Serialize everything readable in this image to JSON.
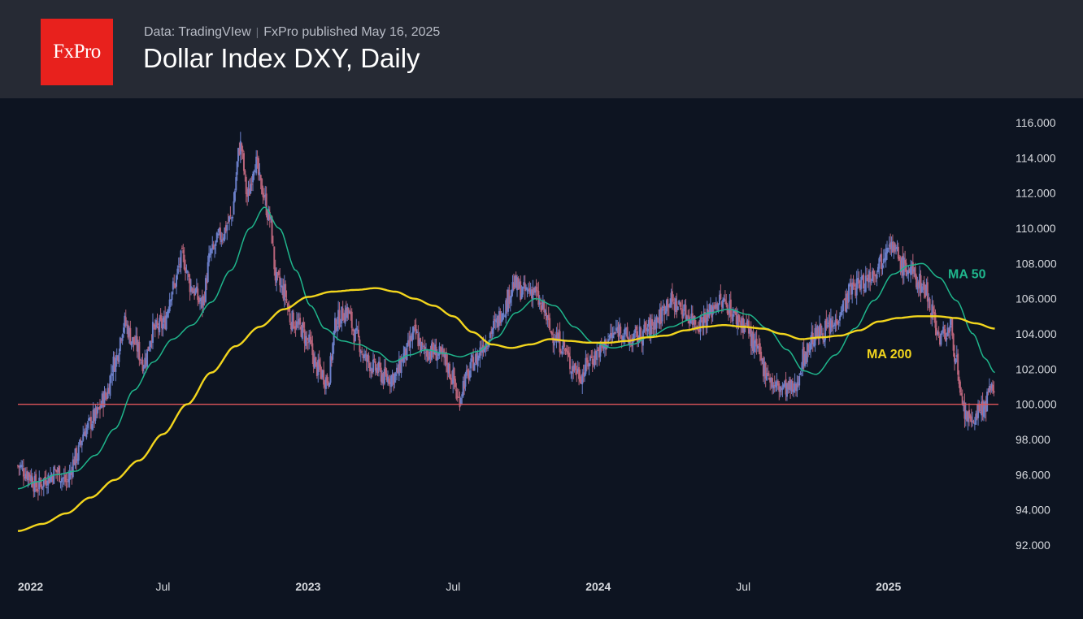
{
  "header": {
    "logo_text": "FxPro",
    "source": "Data: TradingVIew",
    "published": "FxPro published May 16, 2025",
    "separator": "|"
  },
  "chart_data": {
    "type": "candlestick",
    "title": "Dollar Index DXY, Daily",
    "ylim": [
      90.8,
      117.2
    ],
    "y_ticks": [
      92,
      94,
      96,
      98,
      100,
      102,
      104,
      106,
      108,
      110,
      112,
      114,
      116
    ],
    "y_tick_labels": [
      "92.000",
      "94.000",
      "96.000",
      "98.000",
      "100.000",
      "102.000",
      "104.000",
      "106.000",
      "108.000",
      "110.000",
      "112.000",
      "114.000",
      "116.000"
    ],
    "x_ticks": [
      {
        "label": "2022",
        "month_index": 0,
        "bold": true
      },
      {
        "label": "Jul",
        "month_index": 6,
        "bold": false
      },
      {
        "label": "2023",
        "month_index": 12,
        "bold": true
      },
      {
        "label": "Jul",
        "month_index": 18,
        "bold": false
      },
      {
        "label": "2024",
        "month_index": 24,
        "bold": true
      },
      {
        "label": "Jul",
        "month_index": 30,
        "bold": false
      },
      {
        "label": "2025",
        "month_index": 36,
        "bold": true
      }
    ],
    "x_range_months": [
      0,
      40.55
    ],
    "horizontal_level": {
      "value": 100,
      "color": "#e0565b"
    },
    "price_path": [
      [
        0.0,
        96.5
      ],
      [
        0.4,
        96.1
      ],
      [
        0.8,
        95.3
      ],
      [
        1.2,
        95.8
      ],
      [
        1.6,
        96.2
      ],
      [
        2.0,
        95.6
      ],
      [
        2.4,
        97.0
      ],
      [
        2.8,
        98.6
      ],
      [
        3.2,
        99.3
      ],
      [
        3.6,
        100.4
      ],
      [
        4.0,
        102.4
      ],
      [
        4.4,
        104.6
      ],
      [
        4.8,
        103.5
      ],
      [
        5.2,
        102.4
      ],
      [
        5.6,
        104.2
      ],
      [
        6.0,
        104.5
      ],
      [
        6.4,
        106.6
      ],
      [
        6.8,
        108.3
      ],
      [
        7.2,
        106.6
      ],
      [
        7.6,
        105.7
      ],
      [
        8.0,
        108.6
      ],
      [
        8.4,
        109.6
      ],
      [
        8.8,
        110.5
      ],
      [
        9.2,
        114.7
      ],
      [
        9.5,
        111.8
      ],
      [
        9.8,
        113.8
      ],
      [
        10.1,
        112.2
      ],
      [
        10.4,
        110.6
      ],
      [
        10.7,
        107.0
      ],
      [
        11.0,
        106.4
      ],
      [
        11.3,
        104.8
      ],
      [
        11.7,
        104.3
      ],
      [
        12.0,
        103.5
      ],
      [
        12.4,
        102.0
      ],
      [
        12.8,
        101.4
      ],
      [
        13.2,
        104.8
      ],
      [
        13.6,
        105.3
      ],
      [
        14.0,
        103.8
      ],
      [
        14.4,
        102.5
      ],
      [
        14.8,
        102.0
      ],
      [
        15.2,
        101.5
      ],
      [
        15.6,
        101.6
      ],
      [
        16.0,
        102.8
      ],
      [
        16.4,
        104.0
      ],
      [
        16.8,
        103.0
      ],
      [
        17.2,
        103.0
      ],
      [
        17.6,
        102.6
      ],
      [
        18.0,
        101.5
      ],
      [
        18.2,
        100.2
      ],
      [
        18.5,
        101.4
      ],
      [
        18.9,
        102.5
      ],
      [
        19.3,
        103.5
      ],
      [
        19.7,
        104.4
      ],
      [
        20.1,
        105.5
      ],
      [
        20.5,
        106.8
      ],
      [
        20.9,
        106.4
      ],
      [
        21.3,
        106.5
      ],
      [
        21.7,
        105.4
      ],
      [
        22.1,
        104.0
      ],
      [
        22.5,
        103.4
      ],
      [
        22.9,
        102.2
      ],
      [
        23.3,
        101.7
      ],
      [
        23.7,
        102.6
      ],
      [
        24.1,
        103.1
      ],
      [
        24.5,
        103.8
      ],
      [
        24.9,
        104.3
      ],
      [
        25.3,
        103.6
      ],
      [
        25.7,
        103.9
      ],
      [
        26.1,
        104.3
      ],
      [
        26.5,
        104.9
      ],
      [
        26.9,
        105.9
      ],
      [
        27.3,
        105.6
      ],
      [
        27.7,
        105.1
      ],
      [
        28.1,
        104.6
      ],
      [
        28.5,
        105.0
      ],
      [
        28.9,
        105.8
      ],
      [
        29.3,
        105.7
      ],
      [
        29.7,
        104.9
      ],
      [
        30.1,
        104.5
      ],
      [
        30.5,
        103.2
      ],
      [
        30.9,
        102.0
      ],
      [
        31.3,
        101.0
      ],
      [
        31.7,
        100.9
      ],
      [
        32.1,
        100.8
      ],
      [
        32.5,
        102.7
      ],
      [
        32.9,
        103.8
      ],
      [
        33.3,
        104.2
      ],
      [
        33.7,
        104.4
      ],
      [
        34.1,
        105.6
      ],
      [
        34.5,
        106.6
      ],
      [
        34.9,
        106.9
      ],
      [
        35.3,
        107.4
      ],
      [
        35.7,
        108.2
      ],
      [
        36.0,
        109.4
      ],
      [
        36.3,
        108.6
      ],
      [
        36.6,
        107.8
      ],
      [
        36.9,
        107.6
      ],
      [
        37.2,
        107.0
      ],
      [
        37.5,
        106.6
      ],
      [
        37.8,
        105.4
      ],
      [
        38.1,
        103.8
      ],
      [
        38.4,
        104.1
      ],
      [
        38.6,
        104.3
      ],
      [
        38.8,
        102.5
      ],
      [
        39.0,
        100.0
      ],
      [
        39.2,
        99.4
      ],
      [
        39.4,
        98.8
      ],
      [
        39.6,
        99.4
      ],
      [
        39.8,
        99.6
      ],
      [
        40.0,
        100.0
      ],
      [
        40.2,
        100.6
      ],
      [
        40.4,
        101.0
      ]
    ],
    "series": [
      {
        "name": "MA 50",
        "color": "#1fb68c",
        "points": [
          [
            0.0,
            95.2
          ],
          [
            0.8,
            95.6
          ],
          [
            1.6,
            96.0
          ],
          [
            2.4,
            96.2
          ],
          [
            3.2,
            97.1
          ],
          [
            4.0,
            98.6
          ],
          [
            4.8,
            100.8
          ],
          [
            5.6,
            102.4
          ],
          [
            6.4,
            103.7
          ],
          [
            7.2,
            104.5
          ],
          [
            8.0,
            105.8
          ],
          [
            8.8,
            107.6
          ],
          [
            9.6,
            110.0
          ],
          [
            10.2,
            111.2
          ],
          [
            10.8,
            110.0
          ],
          [
            11.5,
            107.6
          ],
          [
            12.1,
            105.6
          ],
          [
            12.7,
            104.3
          ],
          [
            13.4,
            103.6
          ],
          [
            14.1,
            103.4
          ],
          [
            14.8,
            103.0
          ],
          [
            15.5,
            102.4
          ],
          [
            16.2,
            102.8
          ],
          [
            16.9,
            103.1
          ],
          [
            17.6,
            102.9
          ],
          [
            18.3,
            102.7
          ],
          [
            19.0,
            103.0
          ],
          [
            19.8,
            103.8
          ],
          [
            20.6,
            105.2
          ],
          [
            21.4,
            106.0
          ],
          [
            22.2,
            105.6
          ],
          [
            23.0,
            104.4
          ],
          [
            23.8,
            103.5
          ],
          [
            24.6,
            103.2
          ],
          [
            25.4,
            103.4
          ],
          [
            26.2,
            103.9
          ],
          [
            27.0,
            104.4
          ],
          [
            27.8,
            104.8
          ],
          [
            28.6,
            105.2
          ],
          [
            29.4,
            105.4
          ],
          [
            30.2,
            105.1
          ],
          [
            31.0,
            104.3
          ],
          [
            31.8,
            103.1
          ],
          [
            32.5,
            101.9
          ],
          [
            33.0,
            101.7
          ],
          [
            33.8,
            102.8
          ],
          [
            34.6,
            104.3
          ],
          [
            35.4,
            105.9
          ],
          [
            36.2,
            107.4
          ],
          [
            36.9,
            107.9
          ],
          [
            37.4,
            108.0
          ],
          [
            38.1,
            107.2
          ],
          [
            38.8,
            105.9
          ],
          [
            39.5,
            104.0
          ],
          [
            40.0,
            102.6
          ],
          [
            40.4,
            101.8
          ]
        ]
      },
      {
        "name": "MA 200",
        "color": "#f2d51d",
        "points": [
          [
            0.0,
            92.8
          ],
          [
            1.0,
            93.2
          ],
          [
            2.0,
            93.8
          ],
          [
            3.0,
            94.7
          ],
          [
            4.0,
            95.7
          ],
          [
            5.0,
            96.8
          ],
          [
            6.0,
            98.3
          ],
          [
            7.0,
            100.0
          ],
          [
            8.0,
            101.8
          ],
          [
            9.0,
            103.3
          ],
          [
            10.0,
            104.4
          ],
          [
            11.0,
            105.4
          ],
          [
            12.0,
            106.1
          ],
          [
            13.0,
            106.4
          ],
          [
            14.0,
            106.5
          ],
          [
            14.8,
            106.6
          ],
          [
            15.6,
            106.4
          ],
          [
            16.4,
            106.0
          ],
          [
            17.2,
            105.6
          ],
          [
            18.0,
            105.0
          ],
          [
            18.8,
            104.1
          ],
          [
            19.6,
            103.4
          ],
          [
            20.4,
            103.2
          ],
          [
            21.2,
            103.4
          ],
          [
            22.0,
            103.7
          ],
          [
            22.8,
            103.6
          ],
          [
            23.6,
            103.5
          ],
          [
            24.4,
            103.5
          ],
          [
            25.2,
            103.6
          ],
          [
            26.0,
            103.8
          ],
          [
            26.8,
            103.9
          ],
          [
            27.6,
            104.2
          ],
          [
            28.4,
            104.4
          ],
          [
            29.2,
            104.5
          ],
          [
            30.0,
            104.4
          ],
          [
            30.8,
            104.3
          ],
          [
            31.6,
            104.0
          ],
          [
            32.4,
            103.7
          ],
          [
            33.2,
            103.8
          ],
          [
            34.0,
            103.9
          ],
          [
            34.8,
            104.2
          ],
          [
            35.6,
            104.7
          ],
          [
            36.4,
            104.9
          ],
          [
            37.2,
            105.0
          ],
          [
            38.0,
            105.0
          ],
          [
            38.8,
            104.9
          ],
          [
            39.6,
            104.6
          ],
          [
            40.4,
            104.3
          ]
        ]
      }
    ],
    "grid": false,
    "legend": "inline labels near line ends"
  }
}
